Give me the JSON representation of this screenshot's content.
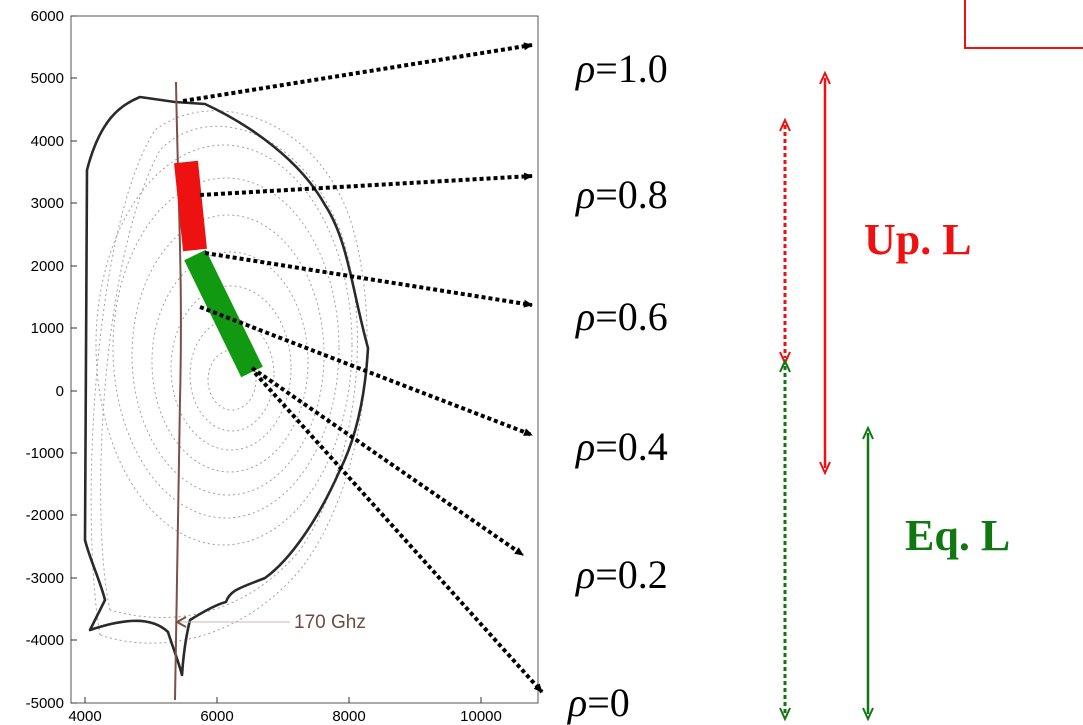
{
  "plot": {
    "y_ticks": [
      "6000",
      "5000",
      "4000",
      "3000",
      "2000",
      "1000",
      "0",
      "-1000",
      "-2000",
      "-3000",
      "-4000",
      "-5000"
    ],
    "x_ticks": [
      "4000",
      "6000",
      "8000",
      "10000"
    ],
    "beam_label": "170 Ghz"
  },
  "rho_labels": [
    {
      "symbol": "ρ",
      "text": "=1.0"
    },
    {
      "symbol": "ρ",
      "text": "=0.8"
    },
    {
      "symbol": "ρ",
      "text": "=0.6"
    },
    {
      "symbol": "ρ",
      "text": "=0.4"
    },
    {
      "symbol": "ρ",
      "text": "=0.2"
    },
    {
      "symbol": "ρ",
      "text": "=0"
    }
  ],
  "launchers": {
    "upper": {
      "label": "Up. L",
      "color": "#ee1111"
    },
    "equatorial": {
      "label": "Eq. L",
      "color": "#117711"
    }
  },
  "colors": {
    "arrow": "#000000",
    "boundary": "#2a2a2a",
    "flux": "#9a9a9a",
    "beam": "#7a5048"
  }
}
